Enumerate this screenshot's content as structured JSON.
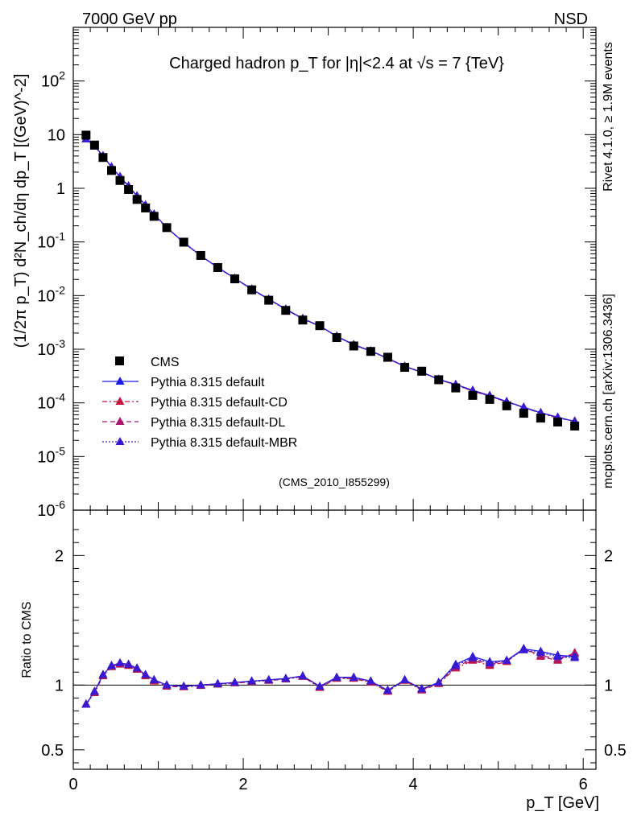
{
  "header": {
    "left": "7000 GeV pp",
    "right": "NSD",
    "side_label_1": "Rivet 4.1.0, ≥ 1.9M events",
    "side_label_2": "mcplots.cern.ch [arXiv:1306.3436]",
    "analysis_tag": "(CMS_2010_I855299)"
  },
  "chart_data": [
    {
      "type": "line",
      "title": "Charged hadron p_T for |η|<2.4 at √s = 7 {TeV}",
      "xlabel": "p_T [GeV]",
      "ylabel": "(1/2π p_T) d²N_ch/dη dp_T [(GeV)^-2]",
      "yscale": "log",
      "xlim": [
        0,
        6.15
      ],
      "ylim": [
        1e-06,
        1000
      ],
      "y_tick_labels": [
        "10^-6",
        "10^-5",
        "10^-4",
        "10^-3",
        "10^-2",
        "10^-1",
        "1",
        "10",
        "10^2"
      ],
      "x": [
        0.15,
        0.25,
        0.35,
        0.45,
        0.55,
        0.65,
        0.75,
        0.85,
        0.95,
        1.1,
        1.3,
        1.5,
        1.7,
        1.9,
        2.1,
        2.3,
        2.5,
        2.7,
        2.9,
        3.1,
        3.3,
        3.5,
        3.7,
        3.9,
        4.1,
        4.3,
        4.5,
        4.7,
        4.9,
        5.1,
        5.3,
        5.5,
        5.7,
        5.9
      ],
      "legend": [
        "CMS",
        "Pythia 8.315 default",
        "Pythia 8.315 default-CD",
        "Pythia 8.315 default-DL",
        "Pythia 8.315 default-MBR"
      ],
      "series": [
        {
          "name": "CMS",
          "values": [
            9.8,
            6.4,
            3.75,
            2.15,
            1.4,
            0.95,
            0.62,
            0.43,
            0.3,
            0.185,
            0.099,
            0.056,
            0.0333,
            0.0205,
            0.0128,
            0.0082,
            0.0053,
            0.0035,
            0.00275,
            0.00165,
            0.00115,
            0.00091,
            0.00071,
            0.00046,
            0.00039,
            0.00027,
            0.00019,
            0.000138,
            0.000116,
            8.8e-05,
            6.4e-05,
            5.2e-05,
            4.4e-05,
            3.7e-05
          ]
        },
        {
          "name": "Pythia 8.315 default",
          "values": [
            8.3,
            6.1,
            4.05,
            2.5,
            1.65,
            1.1,
            0.72,
            0.49,
            0.33,
            0.186,
            0.098,
            0.0554,
            0.0335,
            0.021,
            0.0132,
            0.0086,
            0.0056,
            0.00374,
            0.00272,
            0.00175,
            0.00122,
            0.00093,
            0.00068,
            0.00048,
            0.000376,
            0.000275,
            0.000221,
            0.000172,
            0.000137,
            0.000106,
            8.3e-05,
            6.6e-05,
            5.4e-05,
            4.5e-05
          ]
        },
        {
          "name": "Pythia 8.315 default-CD",
          "values": [
            8.3,
            6.05,
            4.0,
            2.48,
            1.63,
            1.09,
            0.71,
            0.485,
            0.327,
            0.184,
            0.097,
            0.0549,
            0.0333,
            0.0209,
            0.0131,
            0.0085,
            0.0055,
            0.0037,
            0.00268,
            0.00174,
            0.0012,
            0.00092,
            0.00067,
            0.000475,
            0.00037,
            0.000272,
            0.000215,
            0.000166,
            0.000133,
            0.000104,
            8.2e-05,
            6.4e-05,
            5.2e-05,
            4.6e-05
          ]
        },
        {
          "name": "Pythia 8.315 default-DL",
          "values": [
            8.35,
            6.1,
            4.02,
            2.49,
            1.64,
            1.1,
            0.715,
            0.487,
            0.328,
            0.185,
            0.0975,
            0.0551,
            0.0334,
            0.021,
            0.0131,
            0.0085,
            0.00555,
            0.0037,
            0.0027,
            0.00174,
            0.00121,
            0.000925,
            0.000675,
            0.000478,
            0.000372,
            0.000273,
            0.000217,
            0.000168,
            0.000134,
            0.000105,
            8.2e-05,
            6.5e-05,
            5.3e-05,
            4.55e-05
          ]
        },
        {
          "name": "Pythia 8.315 default-MBR",
          "values": [
            8.3,
            6.08,
            4.04,
            2.5,
            1.65,
            1.1,
            0.72,
            0.488,
            0.329,
            0.185,
            0.0978,
            0.0553,
            0.0335,
            0.021,
            0.0132,
            0.0086,
            0.0056,
            0.00372,
            0.00271,
            0.00175,
            0.00121,
            0.00093,
            0.00068,
            0.00048,
            0.000375,
            0.000274,
            0.00022,
            0.00017,
            0.000136,
            0.000105,
            8.3e-05,
            6.5e-05,
            5.4e-05,
            4.5e-05
          ]
        }
      ]
    },
    {
      "type": "line",
      "title": "",
      "xlabel": "p_T [GeV]",
      "ylabel": "Ratio to CMS",
      "xlim": [
        0,
        6.15
      ],
      "ylim": [
        0.35,
        2.35
      ],
      "y_ticks": [
        0.5,
        1,
        2
      ],
      "y_tick_labels": [
        "0.5",
        "1",
        "2"
      ],
      "x_ticks": [
        0,
        2,
        4,
        6
      ],
      "x_tick_labels": [
        "0",
        "2",
        "4",
        "6"
      ],
      "x": [
        0.15,
        0.25,
        0.35,
        0.45,
        0.55,
        0.65,
        0.75,
        0.85,
        0.95,
        1.1,
        1.3,
        1.5,
        1.7,
        1.9,
        2.1,
        2.3,
        2.5,
        2.7,
        2.9,
        3.1,
        3.3,
        3.5,
        3.7,
        3.9,
        4.1,
        4.3,
        4.5,
        4.7,
        4.9,
        5.1,
        5.3,
        5.5,
        5.7,
        5.9
      ],
      "series": [
        {
          "name": "Pythia 8.315 default",
          "values": [
            0.85,
            0.95,
            1.08,
            1.15,
            1.17,
            1.16,
            1.13,
            1.08,
            1.04,
            1.0,
            0.99,
            1.0,
            1.01,
            1.02,
            1.03,
            1.04,
            1.05,
            1.07,
            0.99,
            1.06,
            1.06,
            1.03,
            0.96,
            1.04,
            0.97,
            1.02,
            1.16,
            1.22,
            1.18,
            1.19,
            1.28,
            1.26,
            1.23,
            1.22
          ]
        },
        {
          "name": "Pythia 8.315 default-CD",
          "values": [
            0.85,
            0.94,
            1.07,
            1.14,
            1.16,
            1.15,
            1.12,
            1.07,
            1.03,
            0.99,
            0.985,
            0.995,
            1.005,
            1.015,
            1.025,
            1.035,
            1.045,
            1.065,
            0.98,
            1.05,
            1.05,
            1.02,
            0.95,
            1.035,
            0.96,
            1.01,
            1.13,
            1.19,
            1.15,
            1.18,
            1.28,
            1.22,
            1.19,
            1.25
          ]
        },
        {
          "name": "Pythia 8.315 default-DL",
          "values": [
            0.855,
            0.95,
            1.08,
            1.15,
            1.17,
            1.16,
            1.13,
            1.08,
            1.04,
            1.0,
            0.99,
            1.0,
            1.01,
            1.02,
            1.03,
            1.04,
            1.05,
            1.07,
            0.985,
            1.055,
            1.055,
            1.025,
            0.955,
            1.04,
            0.965,
            1.015,
            1.14,
            1.2,
            1.16,
            1.19,
            1.28,
            1.23,
            1.2,
            1.24
          ]
        },
        {
          "name": "Pythia 8.315 default-MBR",
          "values": [
            0.85,
            0.95,
            1.08,
            1.15,
            1.17,
            1.16,
            1.13,
            1.08,
            1.04,
            1.0,
            0.99,
            1.0,
            1.01,
            1.02,
            1.03,
            1.04,
            1.05,
            1.07,
            0.99,
            1.06,
            1.06,
            1.03,
            0.96,
            1.04,
            0.97,
            1.02,
            1.15,
            1.21,
            1.17,
            1.19,
            1.27,
            1.25,
            1.22,
            1.21
          ]
        }
      ]
    }
  ],
  "colors": {
    "CMS": "#000000",
    "Pythia 8.315 default": "#1a1aee",
    "Pythia 8.315 default-CD": "#c0143c",
    "Pythia 8.315 default-DL": "#a8186c",
    "Pythia 8.315 default-MBR": "#3a1ad0",
    "side_text": "#8c8c8c"
  }
}
